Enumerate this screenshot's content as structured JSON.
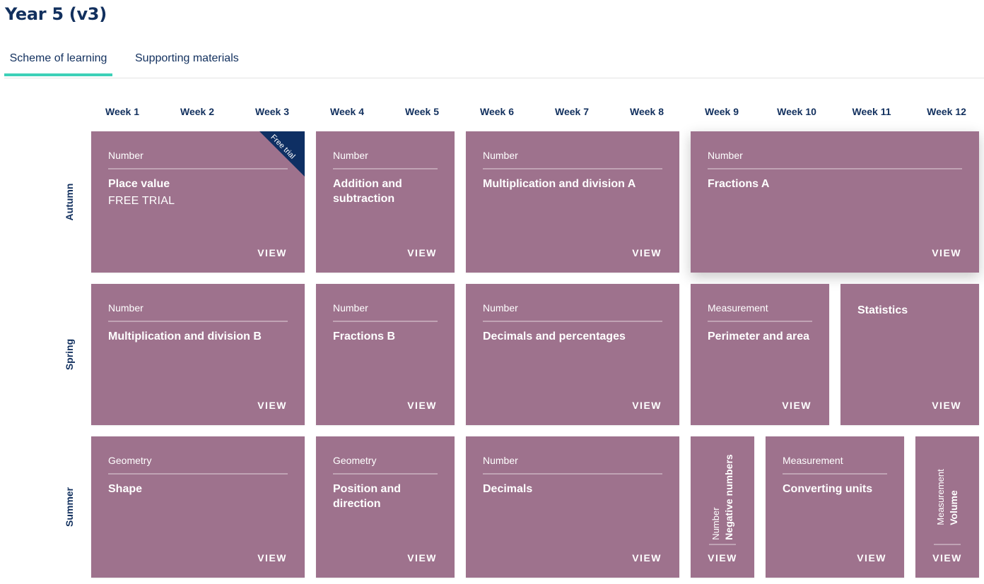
{
  "page": {
    "title": "Year 5 (v3)"
  },
  "tabs": [
    {
      "label": "Scheme of learning",
      "active": true
    },
    {
      "label": "Supporting materials",
      "active": false
    }
  ],
  "weeks": [
    "Week 1",
    "Week 2",
    "Week 3",
    "Week 4",
    "Week 5",
    "Week 6",
    "Week 7",
    "Week 8",
    "Week 9",
    "Week 10",
    "Week 11",
    "Week 12"
  ],
  "terms": [
    "Autumn",
    "Spring",
    "Summer"
  ],
  "view_label": "VIEW",
  "card_color": "#9e728d",
  "accent_color": "#3dd0b8",
  "ribbon_color": "#0e2f63",
  "autumn": {
    "place_value": {
      "category": "Number",
      "title": "Place value",
      "subtitle": "FREE TRIAL",
      "ribbon": "Free trial"
    },
    "addition": {
      "category": "Number",
      "title": "Addition and subtraction"
    },
    "mult_a": {
      "category": "Number",
      "title": "Multiplication and division A"
    },
    "fractions_a": {
      "category": "Number",
      "title": "Fractions A"
    }
  },
  "spring": {
    "mult_b": {
      "category": "Number",
      "title": "Multiplication and division B"
    },
    "fractions_b": {
      "category": "Number",
      "title": "Fractions B"
    },
    "decimals_pct": {
      "category": "Number",
      "title": "Decimals and percentages"
    },
    "perimeter": {
      "category": "Measurement",
      "title": "Perimeter and area"
    },
    "statistics": {
      "title": "Statistics"
    }
  },
  "summer": {
    "shape": {
      "category": "Geometry",
      "title": "Shape"
    },
    "position": {
      "category": "Geometry",
      "title": "Position and direction"
    },
    "decimals": {
      "category": "Number",
      "title": "Decimals"
    },
    "negative": {
      "category": "Number",
      "title": "Negative numbers"
    },
    "converting": {
      "category": "Measurement",
      "title": "Converting units"
    },
    "volume": {
      "category": "Measurement",
      "title": "Volume"
    }
  }
}
